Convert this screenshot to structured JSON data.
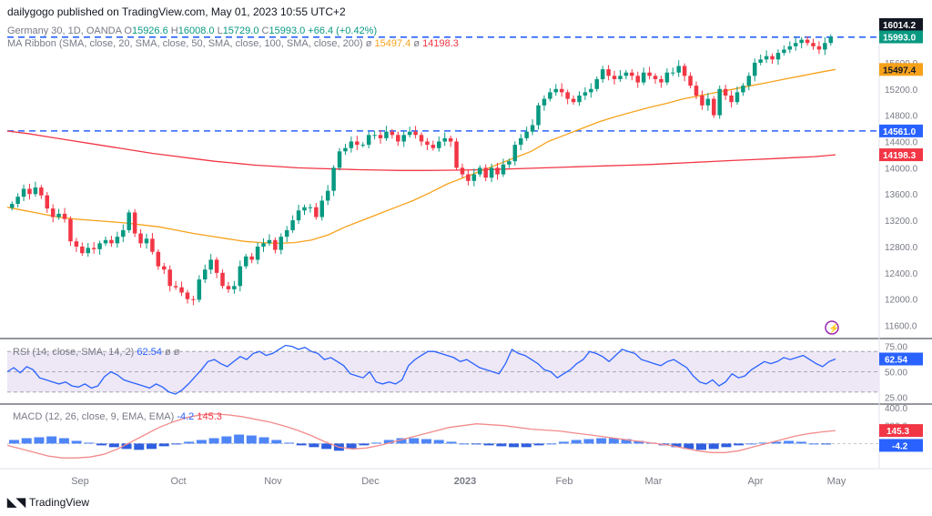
{
  "header": {
    "published": "dailygogo published on TradingView.com, May 01, 2023 10:55 UTC+2"
  },
  "legend_main": {
    "symbol": "Germany 30, 1D, OANDA",
    "o_label": "O",
    "o": "15926.6",
    "h_label": "H",
    "h": "16008.0",
    "l_label": "L",
    "l": "15729.0",
    "c_label": "C",
    "c": "15993.0",
    "change": "+66.4 (+0.42%)",
    "ma_name": "MA Ribbon (SMA, close, 20, SMA, close, 50, SMA, close, 100, SMA, close, 200)",
    "ma1_sym": "ø",
    "ma1": "15497.4",
    "ma2_sym": "ø",
    "ma2": "14198.3"
  },
  "legend_rsi": {
    "name": "RSI (14, close, SMA, 14, 2)",
    "value": "62.54",
    "extra1": "ø",
    "extra2": "ø"
  },
  "legend_macd": {
    "name": "MACD (12, 26, close, 9, EMA, EMA)",
    "macd": "-4.2",
    "signal": "145.3"
  },
  "brand": "TradingView",
  "colors": {
    "up": "#089981",
    "down": "#f23645",
    "ma50": "#f7a21b",
    "ma200": "#f23645",
    "level": "#2962ff",
    "rsi": "#2962ff",
    "rsi_band": "#ede7f6",
    "macd_hist": "#4f86f7"
  },
  "chart_data": [
    {
      "type": "candlestick",
      "title": "Germany 30, 1D, OANDA",
      "currency": "EUR",
      "x_ticks": [
        "Sep",
        "Oct",
        "Nov",
        "Dec",
        "2023",
        "Feb",
        "Mar",
        "Apr",
        "May"
      ],
      "y_ticks": [
        11600,
        12000,
        12400,
        12800,
        13200,
        13600,
        14000,
        14400,
        14800,
        15200,
        15600,
        16014.2
      ],
      "ylim": [
        11400,
        16250
      ],
      "price_labels": [
        {
          "text": "16014.2",
          "value": 16014.2,
          "style": "dark"
        },
        {
          "text": "15993.0",
          "value": 15993.0,
          "style": "up"
        },
        {
          "text": "15497.4",
          "value": 15497.4,
          "style": "orange"
        },
        {
          "text": "14561.0",
          "value": 14561.0,
          "style": "blue"
        },
        {
          "text": "14198.3",
          "value": 14198.3,
          "style": "red"
        }
      ],
      "horizontal_levels": [
        15990,
        14561
      ],
      "closes": [
        13450,
        13560,
        13680,
        13600,
        13700,
        13580,
        13380,
        13250,
        13300,
        13220,
        12880,
        12800,
        12700,
        12780,
        12760,
        12850,
        12900,
        12850,
        12950,
        13050,
        13320,
        13000,
        12850,
        12920,
        12720,
        12500,
        12450,
        12200,
        12180,
        12100,
        12000,
        11990,
        12300,
        12450,
        12600,
        12400,
        12200,
        12150,
        12200,
        12500,
        12650,
        12600,
        12800,
        12850,
        12900,
        12750,
        12950,
        13050,
        13200,
        13350,
        13400,
        13400,
        13250,
        13500,
        13650,
        14000,
        14250,
        14300,
        14400,
        14350,
        14350,
        14500,
        14500,
        14450,
        14550,
        14500,
        14400,
        14500,
        14550,
        14500,
        14400,
        14350,
        14300,
        14400,
        14450,
        14400,
        14000,
        13900,
        13800,
        13900,
        14000,
        13850,
        14000,
        13900,
        14050,
        14100,
        14350,
        14450,
        14550,
        14650,
        14950,
        15050,
        15150,
        15200,
        15150,
        15050,
        15000,
        15100,
        15150,
        15200,
        15350,
        15500,
        15400,
        15350,
        15400,
        15450,
        15400,
        15300,
        15450,
        15400,
        15350,
        15300,
        15450,
        15450,
        15550,
        15400,
        15250,
        15100,
        14950,
        15050,
        14800,
        15200,
        15100,
        15000,
        15150,
        15250,
        15400,
        15600,
        15650,
        15700,
        15650,
        15750,
        15800,
        15850,
        15900,
        15950,
        15900,
        15850,
        15800,
        15900,
        15993
      ],
      "ma50": [
        13400,
        13350,
        13300,
        13250,
        13220,
        13200,
        13180,
        13160,
        13130,
        13100,
        13050,
        13000,
        12960,
        12920,
        12880,
        12860,
        12850,
        12860,
        12900,
        12980,
        13100,
        13200,
        13300,
        13400,
        13500,
        13620,
        13750,
        13850,
        13950,
        14050,
        14150,
        14250,
        14400,
        14500,
        14600,
        14700,
        14780,
        14850,
        14920,
        14980,
        15050,
        15100,
        15150,
        15200,
        15250,
        15300,
        15350,
        15400,
        15450,
        15497
      ],
      "ma200": [
        14560,
        14520,
        14470,
        14420,
        14370,
        14320,
        14270,
        14220,
        14180,
        14140,
        14100,
        14070,
        14040,
        14020,
        14000,
        13990,
        13980,
        13970,
        13965,
        13960,
        13960,
        13962,
        13965,
        13970,
        13980,
        13990,
        14000,
        14010,
        14020,
        14030,
        14040,
        14050,
        14065,
        14080,
        14095,
        14110,
        14125,
        14140,
        14155,
        14170,
        14198
      ]
    },
    {
      "type": "line",
      "title": "RSI (14, close, SMA, 14, 2)",
      "y_ticks": [
        75,
        50,
        25
      ],
      "ylim": [
        20,
        80
      ],
      "band": [
        30,
        70
      ],
      "values": [
        50,
        54,
        49,
        55,
        52,
        44,
        42,
        40,
        38,
        40,
        36,
        35,
        38,
        34,
        36,
        45,
        50,
        47,
        42,
        40,
        38,
        36,
        34,
        38,
        35,
        30,
        28,
        32,
        38,
        45,
        52,
        60,
        62,
        58,
        55,
        60,
        65,
        62,
        68,
        70,
        66,
        68,
        72,
        76,
        75,
        72,
        74,
        70,
        68,
        62,
        64,
        60,
        56,
        48,
        46,
        44,
        50,
        40,
        38,
        40,
        38,
        42,
        56,
        62,
        66,
        70,
        70,
        68,
        66,
        64,
        60,
        62,
        58,
        54,
        52,
        50,
        48,
        58,
        72,
        68,
        66,
        62,
        58,
        52,
        50,
        44,
        48,
        52,
        58,
        62,
        70,
        68,
        65,
        60,
        66,
        72,
        70,
        68,
        62,
        60,
        58,
        56,
        60,
        62,
        58,
        54,
        46,
        40,
        38,
        42,
        36,
        40,
        48,
        44,
        46,
        52,
        56,
        60,
        58,
        60,
        64,
        62,
        64,
        66,
        62,
        58,
        55,
        60,
        62.54
      ]
    },
    {
      "type": "histogram_line",
      "title": "MACD (12, 26, close, 9, EMA, EMA)",
      "y_ticks": [
        400,
        200,
        0
      ],
      "ylim": [
        -280,
        420
      ],
      "macd_hist": [
        40,
        60,
        70,
        80,
        60,
        30,
        10,
        -20,
        -40,
        -60,
        -70,
        -60,
        -30,
        -10,
        20,
        40,
        60,
        80,
        100,
        90,
        70,
        40,
        10,
        -20,
        -40,
        -60,
        -80,
        -60,
        -20,
        10,
        40,
        60,
        60,
        50,
        40,
        20,
        0,
        -10,
        -20,
        -30,
        -40,
        -40,
        -20,
        0,
        20,
        40,
        50,
        60,
        60,
        50,
        30,
        10,
        -20,
        -40,
        -60,
        -70,
        -60,
        -40,
        -20,
        0,
        10,
        20,
        30,
        20,
        0,
        -10
      ],
      "signal": [
        -20,
        -60,
        -100,
        -140,
        -160,
        -160,
        -150,
        -120,
        -60,
        20,
        100,
        180,
        240,
        290,
        320,
        330,
        320,
        300,
        270,
        240,
        200,
        150,
        90,
        20,
        -40,
        -60,
        -50,
        -20,
        20,
        60,
        100,
        140,
        180,
        200,
        220,
        210,
        200,
        180,
        160,
        150,
        140,
        120,
        100,
        80,
        60,
        40,
        20,
        0,
        -20,
        -50,
        -80,
        -100,
        -100,
        -80,
        -40,
        0,
        40,
        80,
        110,
        130,
        145.3
      ]
    }
  ]
}
